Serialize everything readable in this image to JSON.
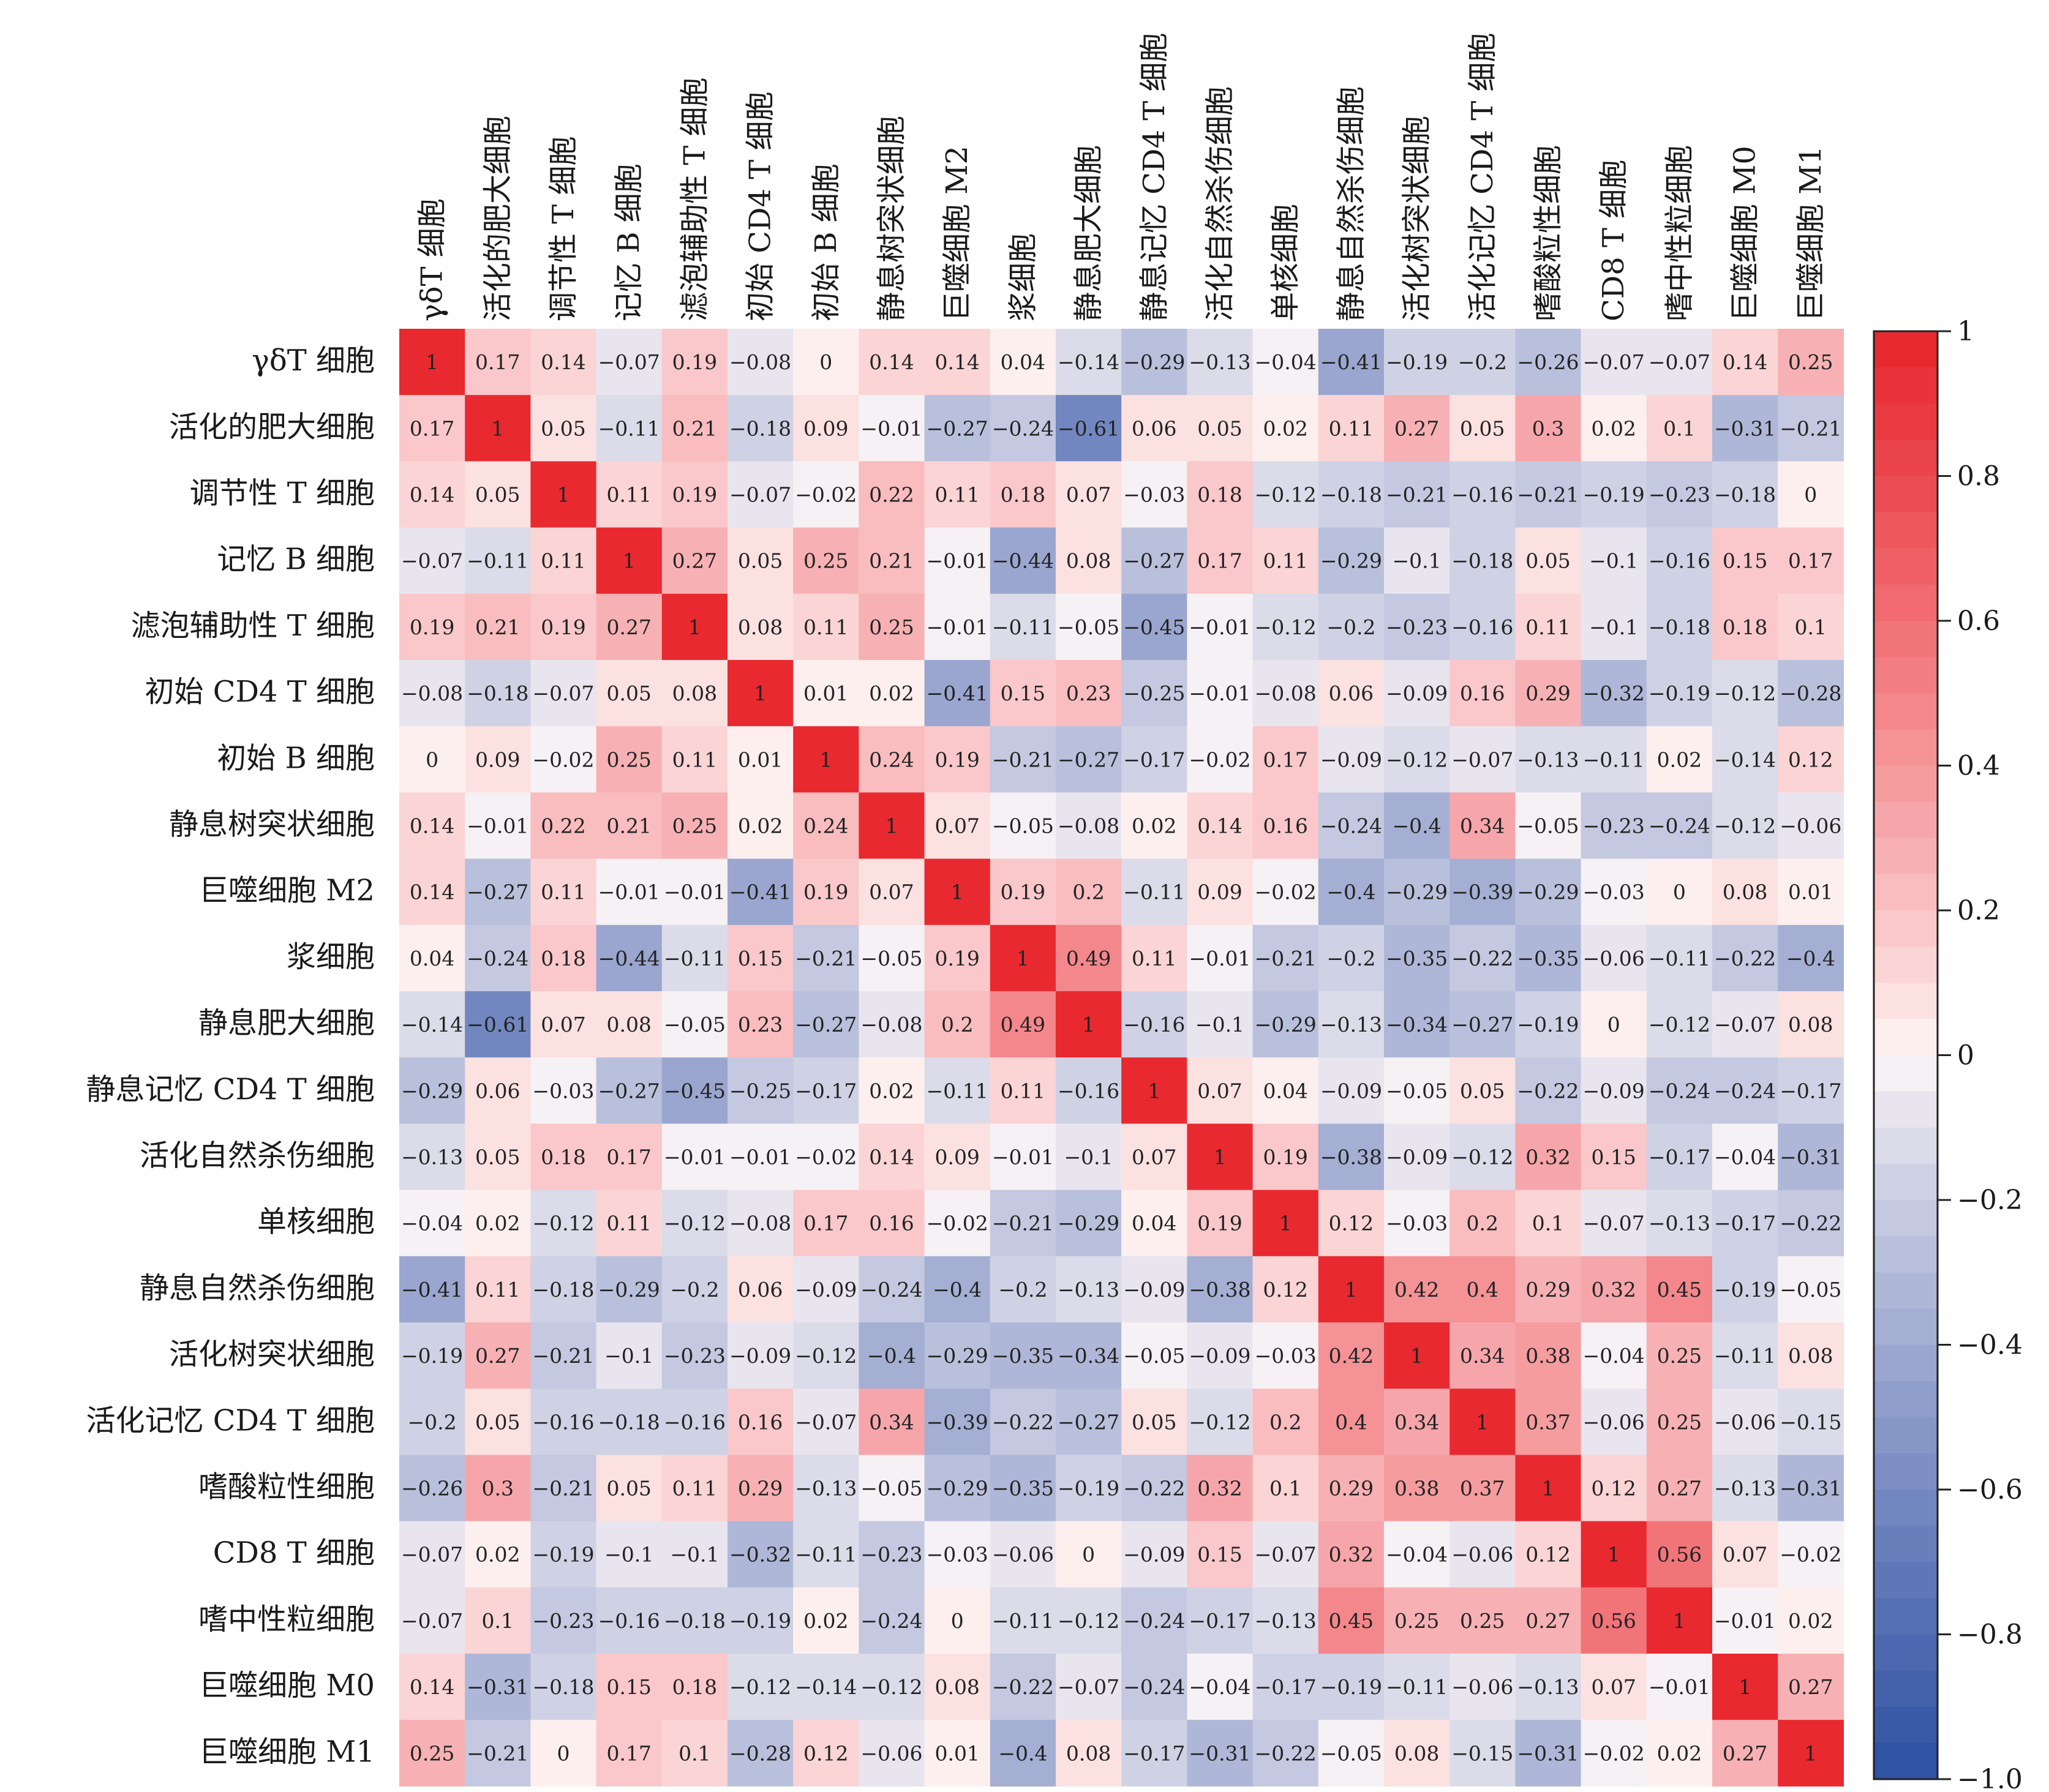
{
  "chart_data": {
    "type": "heatmap",
    "title": "",
    "xlabel": "",
    "ylabel": "",
    "labels": [
      "γδT 细胞",
      "活化的肥大细胞",
      "调节性 T 细胞",
      "记忆 B 细胞",
      "滤泡辅助性 T 细胞",
      "初始 CD4 T 细胞",
      "初始 B 细胞",
      "静息树突状细胞",
      "巨噬细胞 M2",
      "浆细胞",
      "静息肥大细胞",
      "静息记忆 CD4 T 细胞",
      "活化自然杀伤细胞",
      "单核细胞",
      "静息自然杀伤细胞",
      "活化树突状细胞",
      "活化记忆 CD4 T 细胞",
      "嗜酸粒性细胞",
      "CD8 T 细胞",
      "嗜中性粒细胞",
      "巨噬细胞 M0",
      "巨噬细胞 M1"
    ],
    "matrix": [
      [
        1,
        0.17,
        0.14,
        -0.07,
        0.19,
        -0.08,
        0,
        0.14,
        0.14,
        0.04,
        -0.14,
        -0.29,
        -0.13,
        -0.04,
        -0.41,
        -0.19,
        -0.2,
        -0.26,
        -0.07,
        -0.07,
        0.14,
        0.25
      ],
      [
        0.17,
        1,
        0.05,
        -0.11,
        0.21,
        -0.18,
        0.09,
        -0.01,
        -0.27,
        -0.24,
        -0.61,
        0.06,
        0.05,
        0.02,
        0.11,
        0.27,
        0.05,
        0.3,
        0.02,
        0.1,
        -0.31,
        -0.21
      ],
      [
        0.14,
        0.05,
        1,
        0.11,
        0.19,
        -0.07,
        -0.02,
        0.22,
        0.11,
        0.18,
        0.07,
        -0.03,
        0.18,
        -0.12,
        -0.18,
        -0.21,
        -0.16,
        -0.21,
        -0.19,
        -0.23,
        -0.18,
        0
      ],
      [
        -0.07,
        -0.11,
        0.11,
        1,
        0.27,
        0.05,
        0.25,
        0.21,
        -0.01,
        -0.44,
        0.08,
        -0.27,
        0.17,
        0.11,
        -0.29,
        -0.1,
        -0.18,
        0.05,
        -0.1,
        -0.16,
        0.15,
        0.17
      ],
      [
        0.19,
        0.21,
        0.19,
        0.27,
        1,
        0.08,
        0.11,
        0.25,
        -0.01,
        -0.11,
        -0.05,
        -0.45,
        -0.01,
        -0.12,
        -0.2,
        -0.23,
        -0.16,
        0.11,
        -0.1,
        -0.18,
        0.18,
        0.1
      ],
      [
        -0.08,
        -0.18,
        -0.07,
        0.05,
        0.08,
        1,
        0.01,
        0.02,
        -0.41,
        0.15,
        0.23,
        -0.25,
        -0.01,
        -0.08,
        0.06,
        -0.09,
        0.16,
        0.29,
        -0.32,
        -0.19,
        -0.12,
        -0.28
      ],
      [
        0,
        0.09,
        -0.02,
        0.25,
        0.11,
        0.01,
        1,
        0.24,
        0.19,
        -0.21,
        -0.27,
        -0.17,
        -0.02,
        0.17,
        -0.09,
        -0.12,
        -0.07,
        -0.13,
        -0.11,
        0.02,
        -0.14,
        0.12
      ],
      [
        0.14,
        -0.01,
        0.22,
        0.21,
        0.25,
        0.02,
        0.24,
        1,
        0.07,
        -0.05,
        -0.08,
        0.02,
        0.14,
        0.16,
        -0.24,
        -0.4,
        0.34,
        -0.05,
        -0.23,
        -0.24,
        -0.12,
        -0.06
      ],
      [
        0.14,
        -0.27,
        0.11,
        -0.01,
        -0.01,
        -0.41,
        0.19,
        0.07,
        1,
        0.19,
        0.2,
        -0.11,
        0.09,
        -0.02,
        -0.4,
        -0.29,
        -0.39,
        -0.29,
        -0.03,
        0,
        0.08,
        0.01
      ],
      [
        0.04,
        -0.24,
        0.18,
        -0.44,
        -0.11,
        0.15,
        -0.21,
        -0.05,
        0.19,
        1,
        0.49,
        0.11,
        -0.01,
        -0.21,
        -0.2,
        -0.35,
        -0.22,
        -0.35,
        -0.06,
        -0.11,
        -0.22,
        -0.4
      ],
      [
        -0.14,
        -0.61,
        0.07,
        0.08,
        -0.05,
        0.23,
        -0.27,
        -0.08,
        0.2,
        0.49,
        1,
        -0.16,
        -0.1,
        -0.29,
        -0.13,
        -0.34,
        -0.27,
        -0.19,
        0,
        -0.12,
        -0.07,
        0.08
      ],
      [
        -0.29,
        0.06,
        -0.03,
        -0.27,
        -0.45,
        -0.25,
        -0.17,
        0.02,
        -0.11,
        0.11,
        -0.16,
        1,
        0.07,
        0.04,
        -0.09,
        -0.05,
        0.05,
        -0.22,
        -0.09,
        -0.24,
        -0.24,
        -0.17
      ],
      [
        -0.13,
        0.05,
        0.18,
        0.17,
        -0.01,
        -0.01,
        -0.02,
        0.14,
        0.09,
        -0.01,
        -0.1,
        0.07,
        1,
        0.19,
        -0.38,
        -0.09,
        -0.12,
        0.32,
        0.15,
        -0.17,
        -0.04,
        -0.31
      ],
      [
        -0.04,
        0.02,
        -0.12,
        0.11,
        -0.12,
        -0.08,
        0.17,
        0.16,
        -0.02,
        -0.21,
        -0.29,
        0.04,
        0.19,
        1,
        0.12,
        -0.03,
        0.2,
        0.1,
        -0.07,
        -0.13,
        -0.17,
        -0.22
      ],
      [
        -0.41,
        0.11,
        -0.18,
        -0.29,
        -0.2,
        0.06,
        -0.09,
        -0.24,
        -0.4,
        -0.2,
        -0.13,
        -0.09,
        -0.38,
        0.12,
        1,
        0.42,
        0.4,
        0.29,
        0.32,
        0.45,
        -0.19,
        -0.05
      ],
      [
        -0.19,
        0.27,
        -0.21,
        -0.1,
        -0.23,
        -0.09,
        -0.12,
        -0.4,
        -0.29,
        -0.35,
        -0.34,
        -0.05,
        -0.09,
        -0.03,
        0.42,
        1,
        0.34,
        0.38,
        -0.04,
        0.25,
        -0.11,
        0.08
      ],
      [
        -0.2,
        0.05,
        -0.16,
        -0.18,
        -0.16,
        0.16,
        -0.07,
        0.34,
        -0.39,
        -0.22,
        -0.27,
        0.05,
        -0.12,
        0.2,
        0.4,
        0.34,
        1,
        0.37,
        -0.06,
        0.25,
        -0.06,
        -0.15
      ],
      [
        -0.26,
        0.3,
        -0.21,
        0.05,
        0.11,
        0.29,
        -0.13,
        -0.05,
        -0.29,
        -0.35,
        -0.19,
        -0.22,
        0.32,
        0.1,
        0.29,
        0.38,
        0.37,
        1,
        0.12,
        0.27,
        -0.13,
        -0.31
      ],
      [
        -0.07,
        0.02,
        -0.19,
        -0.1,
        -0.1,
        -0.32,
        -0.11,
        -0.23,
        -0.03,
        -0.06,
        0,
        -0.09,
        0.15,
        -0.07,
        0.32,
        -0.04,
        -0.06,
        0.12,
        1,
        0.56,
        0.07,
        -0.02
      ],
      [
        -0.07,
        0.1,
        -0.23,
        -0.16,
        -0.18,
        -0.19,
        0.02,
        -0.24,
        0,
        -0.11,
        -0.12,
        -0.24,
        -0.17,
        -0.13,
        0.45,
        0.25,
        0.25,
        0.27,
        0.56,
        1,
        -0.01,
        0.02
      ],
      [
        0.14,
        -0.31,
        -0.18,
        0.15,
        0.18,
        -0.12,
        -0.14,
        -0.12,
        0.08,
        -0.22,
        -0.07,
        -0.24,
        -0.04,
        -0.17,
        -0.19,
        -0.11,
        -0.06,
        -0.13,
        0.07,
        -0.01,
        1,
        0.27
      ],
      [
        0.25,
        -0.21,
        0,
        0.17,
        0.1,
        -0.28,
        0.12,
        -0.06,
        0.01,
        -0.4,
        0.08,
        -0.17,
        -0.31,
        -0.22,
        -0.05,
        0.08,
        -0.15,
        -0.31,
        -0.02,
        0.02,
        0.27,
        1
      ]
    ],
    "colorbar": {
      "range": [
        -1.0,
        1
      ],
      "ticks": [
        "1",
        "0.8",
        "0.6",
        "0.4",
        "0.2",
        "0",
        "−0.2",
        "−0.4",
        "−0.6",
        "−0.8",
        "−1.0"
      ],
      "tick_values": [
        1,
        0.8,
        0.6,
        0.4,
        0.2,
        0,
        -0.2,
        -0.4,
        -0.6,
        -0.8,
        -1.0
      ],
      "steps": 40
    },
    "colors": {
      "positive": "#E8242C",
      "neutral": "#FFF8F8",
      "negative": "#2D4FA3"
    },
    "legend_position": "right",
    "grid": false
  }
}
